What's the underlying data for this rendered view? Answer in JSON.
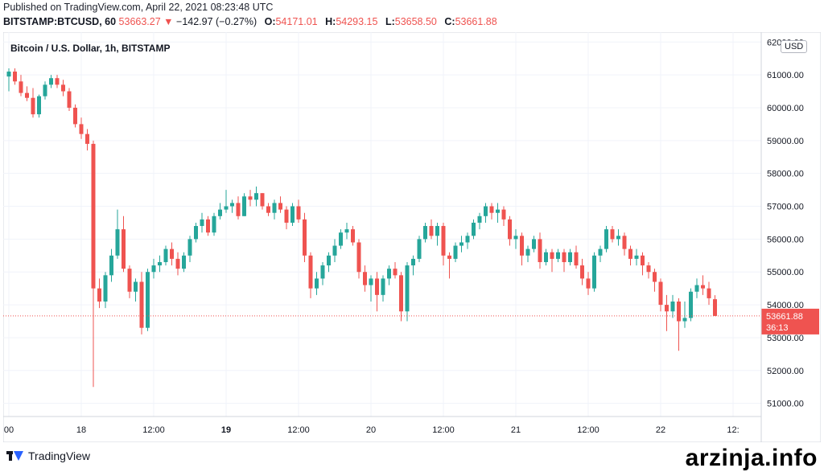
{
  "header": {
    "published": "Published on TradingView.com, April 22, 2021 08:23:48 UTC",
    "symbol": "BITSTAMP:BTCUSD, 60",
    "last": "53663.27",
    "arrow_glyph": "▼",
    "change": "−142.97 (−0.27%)",
    "o_label": "O:",
    "o_value": "54171.01",
    "h_label": "H:",
    "h_value": "54293.15",
    "l_label": "L:",
    "l_value": "53658.50",
    "c_label": "C:",
    "c_value": "53661.88"
  },
  "currency_badge": "USD",
  "footer": {
    "brand": "TradingView",
    "watermark": "arzinja.info"
  },
  "colors": {
    "up": "#26a69a",
    "down": "#ef5350",
    "grid": "#f0f3fa",
    "axis_text": "#131722"
  },
  "chart_data": {
    "type": "candlestick",
    "title": "Bitcoin / U.S. Dollar, 1h, BITSTAMP",
    "ylim": [
      50600,
      62300
    ],
    "y_ticks": [
      51000,
      52000,
      53000,
      54000,
      55000,
      56000,
      57000,
      58000,
      59000,
      60000,
      61000,
      62000
    ],
    "y_tick_labels": [
      "51000.00",
      "52000.00",
      "53000.00",
      "54000.00",
      "55000.00",
      "56000.00",
      "57000.00",
      "58000.00",
      "59000.00",
      "60000.00",
      "61000.00",
      "62000.00"
    ],
    "x_labels": [
      {
        "i": 0,
        "text": "00",
        "bold": false
      },
      {
        "i": 12,
        "text": "18",
        "bold": false
      },
      {
        "i": 24,
        "text": "12:00",
        "bold": false
      },
      {
        "i": 36,
        "text": "19",
        "bold": true
      },
      {
        "i": 48,
        "text": "12:00",
        "bold": false
      },
      {
        "i": 60,
        "text": "20",
        "bold": false
      },
      {
        "i": 72,
        "text": "12:00",
        "bold": false
      },
      {
        "i": 84,
        "text": "21",
        "bold": false
      },
      {
        "i": 96,
        "text": "12:00",
        "bold": false
      },
      {
        "i": 108,
        "text": "22",
        "bold": false
      },
      {
        "i": 120,
        "text": "12:",
        "bold": false
      }
    ],
    "last_price": 53661.88,
    "last_price_label": "53661.88",
    "countdown": "36:13",
    "ohlc": [
      [
        60950,
        61200,
        60500,
        61100
      ],
      [
        61100,
        61200,
        60700,
        60800
      ],
      [
        60800,
        61000,
        60350,
        60450
      ],
      [
        60450,
        60650,
        60200,
        60300
      ],
      [
        60300,
        60600,
        59700,
        59800
      ],
      [
        59800,
        60400,
        59700,
        60350
      ],
      [
        60350,
        60800,
        60250,
        60700
      ],
      [
        60700,
        61000,
        60600,
        60900
      ],
      [
        60900,
        61000,
        60600,
        60700
      ],
      [
        60700,
        60850,
        60350,
        60500
      ],
      [
        60500,
        60600,
        59900,
        60000
      ],
      [
        60000,
        60100,
        59400,
        59500
      ],
      [
        59500,
        59700,
        59050,
        59200
      ],
      [
        59200,
        59350,
        58700,
        58900
      ],
      [
        58900,
        59000,
        51500,
        54500
      ],
      [
        54500,
        54800,
        53900,
        54100
      ],
      [
        54100,
        55000,
        53900,
        54900
      ],
      [
        54900,
        55700,
        54700,
        55500
      ],
      [
        55500,
        56900,
        55400,
        56300
      ],
      [
        56300,
        56700,
        55000,
        55100
      ],
      [
        55100,
        55200,
        54200,
        54400
      ],
      [
        54400,
        54800,
        54100,
        54700
      ],
      [
        54700,
        55000,
        53100,
        53300
      ],
      [
        53300,
        55100,
        53200,
        55000
      ],
      [
        55000,
        55400,
        54800,
        55200
      ],
      [
        55200,
        55500,
        55000,
        55300
      ],
      [
        55300,
        55800,
        55200,
        55700
      ],
      [
        55700,
        55900,
        55200,
        55400
      ],
      [
        55400,
        55600,
        54900,
        55100
      ],
      [
        55100,
        55600,
        55000,
        55500
      ],
      [
        55500,
        56100,
        55300,
        56000
      ],
      [
        56000,
        56500,
        55900,
        56400
      ],
      [
        56400,
        56800,
        56200,
        56600
      ],
      [
        56600,
        56700,
        56100,
        56200
      ],
      [
        56200,
        56800,
        56100,
        56700
      ],
      [
        56700,
        57100,
        56600,
        56900
      ],
      [
        56900,
        57500,
        56800,
        57000
      ],
      [
        57000,
        57200,
        56800,
        57100
      ],
      [
        57100,
        57300,
        56600,
        56700
      ],
      [
        56700,
        57400,
        56700,
        57300
      ],
      [
        57300,
        57500,
        57000,
        57200
      ],
      [
        57200,
        57600,
        57000,
        57400
      ],
      [
        57400,
        57400,
        56900,
        57000
      ],
      [
        57000,
        57100,
        56700,
        56800
      ],
      [
        56800,
        57200,
        56600,
        57100
      ],
      [
        57100,
        57300,
        56800,
        56900
      ],
      [
        56900,
        57000,
        56300,
        56500
      ],
      [
        56500,
        57100,
        56400,
        57000
      ],
      [
        57000,
        57200,
        56500,
        56600
      ],
      [
        56600,
        56800,
        55300,
        55500
      ],
      [
        55500,
        55600,
        54200,
        54500
      ],
      [
        54500,
        55000,
        54300,
        54800
      ],
      [
        54800,
        55300,
        54600,
        55200
      ],
      [
        55200,
        55600,
        55000,
        55500
      ],
      [
        55500,
        56000,
        55300,
        55800
      ],
      [
        55800,
        56300,
        55700,
        56200
      ],
      [
        56200,
        56500,
        56000,
        56300
      ],
      [
        56300,
        56400,
        55800,
        55900
      ],
      [
        55900,
        56000,
        54800,
        55000
      ],
      [
        55000,
        55200,
        54400,
        54600
      ],
      [
        54600,
        54900,
        54100,
        54800
      ],
      [
        54800,
        55000,
        53800,
        54300
      ],
      [
        54300,
        54900,
        54100,
        54800
      ],
      [
        54800,
        55200,
        54600,
        55100
      ],
      [
        55100,
        55300,
        54800,
        54900
      ],
      [
        54900,
        55000,
        53500,
        53800
      ],
      [
        53800,
        55300,
        53500,
        55200
      ],
      [
        55200,
        55500,
        54900,
        55400
      ],
      [
        55400,
        56100,
        55300,
        56000
      ],
      [
        56000,
        56500,
        55900,
        56400
      ],
      [
        56400,
        56600,
        56000,
        56100
      ],
      [
        56100,
        56500,
        55800,
        56400
      ],
      [
        56400,
        56500,
        55200,
        55500
      ],
      [
        55500,
        55600,
        54800,
        55400
      ],
      [
        55400,
        55900,
        55300,
        55800
      ],
      [
        55800,
        56100,
        55600,
        55900
      ],
      [
        55900,
        56200,
        55700,
        56100
      ],
      [
        56100,
        56600,
        56000,
        56500
      ],
      [
        56500,
        56800,
        56300,
        56700
      ],
      [
        56700,
        57100,
        56500,
        57000
      ],
      [
        57000,
        57100,
        56600,
        56800
      ],
      [
        56800,
        57100,
        56500,
        56900
      ],
      [
        56900,
        57000,
        56400,
        56600
      ],
      [
        56600,
        56700,
        55800,
        56000
      ],
      [
        56000,
        56300,
        55700,
        56100
      ],
      [
        56100,
        56200,
        55200,
        55500
      ],
      [
        55500,
        55800,
        55300,
        55700
      ],
      [
        55700,
        56100,
        55600,
        56000
      ],
      [
        56000,
        56200,
        55100,
        55300
      ],
      [
        55300,
        55700,
        55200,
        55600
      ],
      [
        55600,
        55700,
        55000,
        55400
      ],
      [
        55400,
        55700,
        55300,
        55600
      ],
      [
        55600,
        55700,
        55000,
        55300
      ],
      [
        55300,
        55700,
        55200,
        55600
      ],
      [
        55600,
        55800,
        55100,
        55200
      ],
      [
        55200,
        55400,
        54600,
        54800
      ],
      [
        54800,
        55000,
        54300,
        54500
      ],
      [
        54500,
        55600,
        54400,
        55500
      ],
      [
        55500,
        55800,
        55300,
        55700
      ],
      [
        55700,
        56400,
        55600,
        56300
      ],
      [
        56300,
        56400,
        55900,
        56000
      ],
      [
        56000,
        56300,
        55800,
        56100
      ],
      [
        56100,
        56200,
        55500,
        55700
      ],
      [
        55700,
        55800,
        55200,
        55400
      ],
      [
        55400,
        55700,
        55200,
        55500
      ],
      [
        55500,
        55600,
        54900,
        55200
      ],
      [
        55200,
        55300,
        54800,
        55000
      ],
      [
        55000,
        55100,
        54400,
        54700
      ],
      [
        54700,
        54800,
        53800,
        54000
      ],
      [
        54000,
        54300,
        53200,
        53800
      ],
      [
        53800,
        54300,
        53600,
        54100
      ],
      [
        54100,
        54200,
        52600,
        53500
      ],
      [
        53500,
        54100,
        53300,
        53600
      ],
      [
        53600,
        54500,
        53500,
        54400
      ],
      [
        54400,
        54800,
        54200,
        54600
      ],
      [
        54600,
        54900,
        54300,
        54500
      ],
      [
        54500,
        54700,
        54000,
        54200
      ],
      [
        54171,
        54293,
        53658,
        53662
      ]
    ]
  }
}
